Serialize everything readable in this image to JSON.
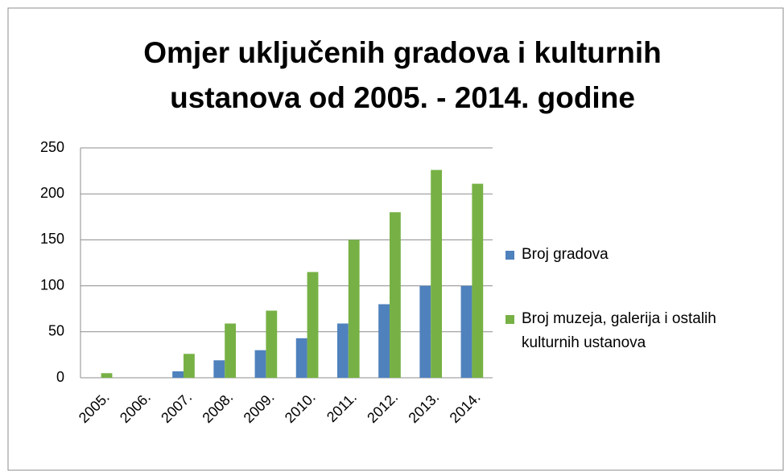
{
  "chart_data": {
    "type": "bar",
    "title": "Omjer uključenih gradova i kulturnih ustanova od 2005. - 2014. godine",
    "categories": [
      "2005.",
      "2006.",
      "2007.",
      "2008.",
      "2009.",
      "2010.",
      "2011.",
      "2012.",
      "2013.",
      "2014."
    ],
    "series": [
      {
        "name": "Broj gradova",
        "color": "#4f81bd",
        "values": [
          0,
          0,
          7,
          19,
          30,
          43,
          59,
          80,
          100,
          100
        ]
      },
      {
        "name": "Broj muzeja, galerija i ostalih kulturnih ustanova",
        "color": "#77b145",
        "values": [
          5,
          0,
          26,
          59,
          73,
          115,
          150,
          180,
          226,
          211
        ]
      }
    ],
    "ylim": [
      0,
      250
    ],
    "yticks": [
      0,
      50,
      100,
      150,
      200,
      250
    ],
    "grid": true,
    "legend": "right"
  }
}
